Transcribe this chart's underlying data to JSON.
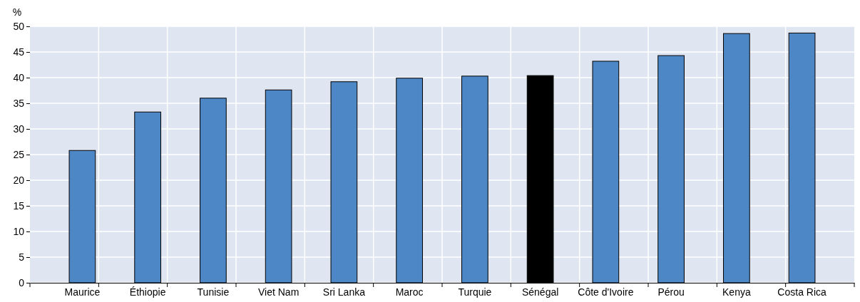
{
  "chart_data": {
    "type": "bar",
    "ylabel": "%",
    "categories": [
      "Maurice",
      "Éthiopie",
      "Tunisie",
      "Viet Nam",
      "Sri Lanka",
      "Maroc",
      "Turquie",
      "Sénégal",
      "Côte d'Ivoire",
      "Pérou",
      "Kenya",
      "Costa Rica"
    ],
    "values": [
      25.8,
      33.3,
      36,
      37.6,
      39.2,
      39.9,
      40.3,
      40.4,
      43.2,
      44.3,
      48.6,
      48.7
    ],
    "colors": [
      "#4e87c5",
      "#4e87c5",
      "#4e87c5",
      "#4e87c5",
      "#4e87c5",
      "#4e87c5",
      "#4e87c5",
      "#000000",
      "#4e87c5",
      "#4e87c5",
      "#4e87c5",
      "#4e87c5"
    ],
    "ylim": [
      0,
      50
    ],
    "yticks": [
      0,
      5,
      10,
      15,
      20,
      25,
      30,
      35,
      40,
      45,
      50
    ],
    "grid": true
  }
}
